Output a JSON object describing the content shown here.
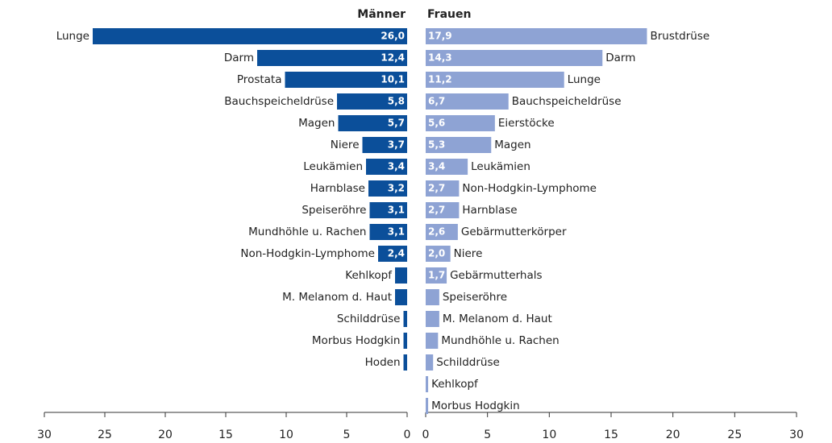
{
  "chart_data": [
    {
      "type": "bar",
      "title": "Männer",
      "color": "#0b4f9a",
      "categories": [
        "Lunge",
        "Darm",
        "Prostata",
        "Bauchspeicheldrüse",
        "Magen",
        "Niere",
        "Leukämien",
        "Harnblase",
        "Speiseröhre",
        "Mundhöhle u. Rachen",
        "Non-Hodgkin-Lymphome",
        "Kehlkopf",
        "M. Melanom d. Haut",
        "Schilddrüse",
        "Morbus Hodgkin",
        "Hoden"
      ],
      "values": [
        26.0,
        12.4,
        10.1,
        5.8,
        5.7,
        3.7,
        3.4,
        3.2,
        3.1,
        3.1,
        2.4,
        1.0,
        1.0,
        0.3,
        0.3,
        0.3
      ],
      "value_labels": [
        "26,0",
        "12,4",
        "10,1",
        "5,8",
        "5,7",
        "3,7",
        "3,4",
        "3,2",
        "3,1",
        "3,1",
        "2,4",
        null,
        null,
        null,
        null,
        null
      ],
      "xlim": [
        0,
        30
      ],
      "xticks": [
        0,
        5,
        10,
        15,
        20,
        25,
        30
      ]
    },
    {
      "type": "bar",
      "title": "Frauen",
      "color": "#8ea3d4",
      "categories": [
        "Brustdrüse",
        "Darm",
        "Lunge",
        "Bauchspeicheldrüse",
        "Eierstöcke",
        "Magen",
        "Leukämien",
        "Non-Hodgkin-Lymphome",
        "Harnblase",
        "Gebärmutterkörper",
        "Niere",
        "Gebärmutterhals",
        "Speiseröhre",
        "M. Melanom d. Haut",
        "Mundhöhle u. Rachen",
        "Schilddrüse",
        "Kehlkopf",
        "Morbus Hodgkin"
      ],
      "values": [
        17.9,
        14.3,
        11.2,
        6.7,
        5.6,
        5.3,
        3.4,
        2.7,
        2.7,
        2.6,
        2.0,
        1.7,
        1.1,
        1.1,
        1.0,
        0.6,
        0.2,
        0.2
      ],
      "value_labels": [
        "17,9",
        "14,3",
        "11,2",
        "6,7",
        "5,6",
        "5,3",
        "3,4",
        "2,7",
        "2,7",
        "2,6",
        "2,0",
        "1,7",
        null,
        null,
        null,
        null,
        null,
        null
      ],
      "xlim": [
        0,
        30
      ],
      "xticks": [
        0,
        5,
        10,
        15,
        20,
        25,
        30
      ]
    }
  ]
}
